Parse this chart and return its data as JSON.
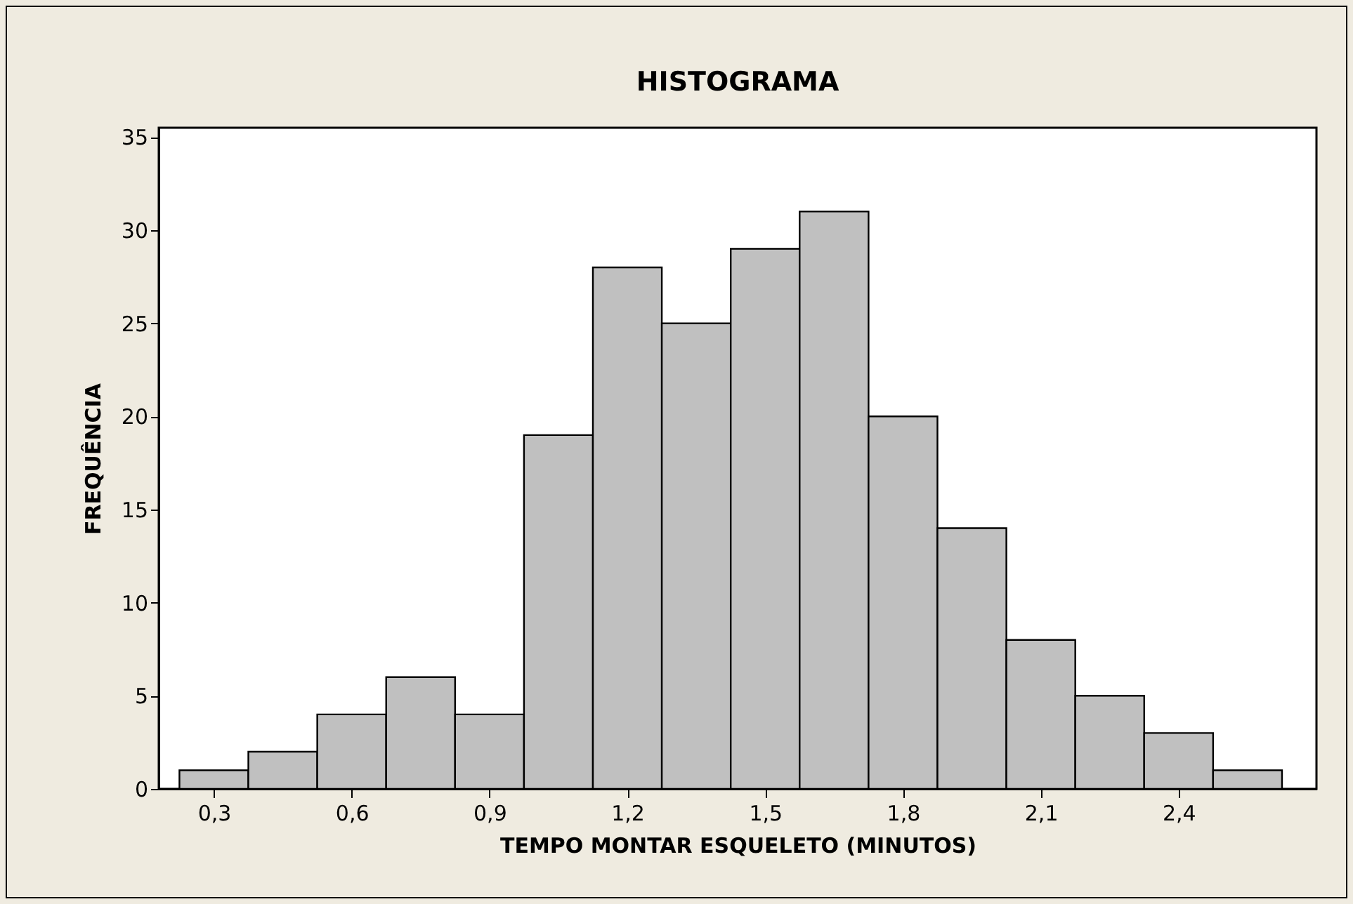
{
  "chart_data": {
    "type": "histogram",
    "title": "HISTOGRAMA",
    "xlabel": "TEMPO MONTAR ESQUELETO (MINUTOS)",
    "ylabel": "FREQUÊNCIA",
    "bins": [
      0.225,
      0.375,
      0.525,
      0.675,
      0.825,
      0.975,
      1.125,
      1.275,
      1.425,
      1.575,
      1.725,
      1.875,
      2.025,
      2.175,
      2.325,
      2.475,
      2.625
    ],
    "values": [
      1,
      2,
      4,
      6,
      4,
      19,
      28,
      25,
      29,
      31,
      20,
      14,
      8,
      5,
      3,
      1
    ],
    "color": "#c0c0c0",
    "xlim": [
      0.18,
      2.7
    ],
    "xticks": [
      {
        "value": 0.3,
        "label": "0,3"
      },
      {
        "value": 0.6,
        "label": "0,6"
      },
      {
        "value": 0.9,
        "label": "0,9"
      },
      {
        "value": 1.2,
        "label": "1,2"
      },
      {
        "value": 1.5,
        "label": "1,5"
      },
      {
        "value": 1.8,
        "label": "1,8"
      },
      {
        "value": 2.1,
        "label": "2,1"
      },
      {
        "value": 2.4,
        "label": "2,4"
      }
    ],
    "ylim": [
      0,
      35.5
    ],
    "yticks": [
      0,
      5,
      10,
      15,
      20,
      25,
      30,
      35
    ],
    "grid": false
  }
}
